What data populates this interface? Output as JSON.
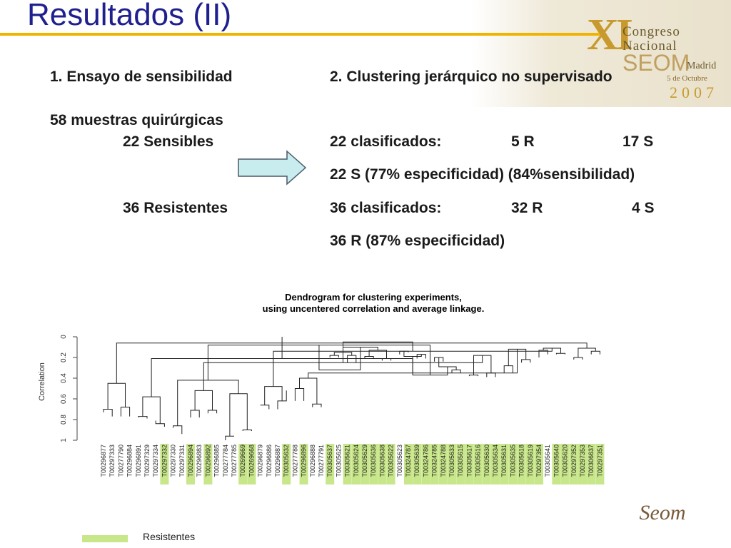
{
  "slide": {
    "title": "Resultados (II)"
  },
  "logo": {
    "xi": "XI",
    "line1": "Congreso",
    "line2": "Nacional",
    "seom": "SEOM",
    "city": "Madrid",
    "date": "5 de Octubre",
    "year": "2007",
    "bottom_logo": "Seom"
  },
  "section1": {
    "heading": "1. Ensayo de sensibilidad",
    "samples": "58 muestras quirúrgicas",
    "sensitive": "22 Sensibles",
    "resistant": "36 Resistentes"
  },
  "section2": {
    "heading": "2. Clustering jerárquico no supervisado",
    "row1": {
      "label": "22 clasificados:",
      "r": "5 R",
      "s": "17 S"
    },
    "row2": "22 S (77% especificidad) (84%sensibilidad)",
    "row3": {
      "label": "36 clasificados:",
      "r": "32 R",
      "s": "4 S"
    },
    "row4": "36 R (87% especificidad)"
  },
  "chart_data": {
    "type": "dendrogram",
    "title_line1": "Dendrogram for clustering experiments,",
    "title_line2": "using uncentered correlation and average linkage.",
    "ylabel": "Correlation",
    "yticks": [
      "0",
      "0.2",
      "0.4",
      "0.6",
      "0.8",
      "1"
    ],
    "ylim": [
      0,
      1
    ],
    "highlight_color": "#c8e68a",
    "leaves": [
      {
        "label": "T00296877",
        "resistant": false,
        "height": 0.73
      },
      {
        "label": "T00297333",
        "resistant": false,
        "height": 0.77
      },
      {
        "label": "T00277790",
        "resistant": false,
        "height": 0.77
      },
      {
        "label": "T00296884",
        "resistant": false,
        "height": 0.77
      },
      {
        "label": "T00296891",
        "resistant": false,
        "height": 0.78
      },
      {
        "label": "T00297329",
        "resistant": false,
        "height": 0.79
      },
      {
        "label": "T00297334",
        "resistant": false,
        "height": 0.81
      },
      {
        "label": "T00297332",
        "resistant": true,
        "height": 0.87
      },
      {
        "label": "T00297330",
        "resistant": false,
        "height": 0.88
      },
      {
        "label": "T00297331",
        "resistant": false,
        "height": 0.94
      },
      {
        "label": "T00296894",
        "resistant": true,
        "height": 0.78
      },
      {
        "label": "T00296883",
        "resistant": false,
        "height": 0.78
      },
      {
        "label": "T00296892",
        "resistant": true,
        "height": 0.74
      },
      {
        "label": "T00296885",
        "resistant": false,
        "height": 0.74
      },
      {
        "label": "T00277784",
        "resistant": false,
        "height": 1.0
      },
      {
        "label": "T00277785",
        "resistant": false,
        "height": 0.96
      },
      {
        "label": "T00269669",
        "resistant": true,
        "height": 0.91
      },
      {
        "label": "T00269668",
        "resistant": true,
        "height": 0.91
      },
      {
        "label": "T00296879",
        "resistant": false,
        "height": 0.66
      },
      {
        "label": "T00296886",
        "resistant": false,
        "height": 0.7
      },
      {
        "label": "T00296887",
        "resistant": false,
        "height": 0.7
      },
      {
        "label": "T00305632",
        "resistant": true,
        "height": 0.52
      },
      {
        "label": "T00277788",
        "resistant": false,
        "height": 0.62
      },
      {
        "label": "T00296896",
        "resistant": true,
        "height": 0.62
      },
      {
        "label": "T00296888",
        "resistant": false,
        "height": 0.68
      },
      {
        "label": "T00277791",
        "resistant": false,
        "height": 0.68
      },
      {
        "label": "T00305637",
        "resistant": true,
        "height": 0.2
      },
      {
        "label": "T00305625",
        "resistant": false,
        "height": 0.2
      },
      {
        "label": "T00305621",
        "resistant": true,
        "height": 0.25
      },
      {
        "label": "T00305624",
        "resistant": true,
        "height": 0.25
      },
      {
        "label": "T00305629",
        "resistant": true,
        "height": 0.21
      },
      {
        "label": "T00305636",
        "resistant": true,
        "height": 0.21
      },
      {
        "label": "T00305638",
        "resistant": true,
        "height": 0.23
      },
      {
        "label": "T00305622",
        "resistant": true,
        "height": 0.23
      },
      {
        "label": "T00305623",
        "resistant": false,
        "height": 0.17
      },
      {
        "label": "T00324787",
        "resistant": true,
        "height": 0.15
      },
      {
        "label": "T00305639",
        "resistant": true,
        "height": 0.21
      },
      {
        "label": "T00324786",
        "resistant": true,
        "height": 0.21
      },
      {
        "label": "T00324785",
        "resistant": true,
        "height": 0.24
      },
      {
        "label": "T00324788",
        "resistant": true,
        "height": 0.24
      },
      {
        "label": "T00305633",
        "resistant": true,
        "height": 0.35
      },
      {
        "label": "T00305615",
        "resistant": true,
        "height": 0.35
      },
      {
        "label": "T00305617",
        "resistant": true,
        "height": 0.38
      },
      {
        "label": "T00305616",
        "resistant": true,
        "height": 0.38
      },
      {
        "label": "T00305630",
        "resistant": true,
        "height": 0.39
      },
      {
        "label": "T00305634",
        "resistant": true,
        "height": 0.39
      },
      {
        "label": "T00305631",
        "resistant": true,
        "height": 0.35
      },
      {
        "label": "T00305635",
        "resistant": true,
        "height": 0.35
      },
      {
        "label": "T00305618",
        "resistant": true,
        "height": 0.25
      },
      {
        "label": "T00305619",
        "resistant": true,
        "height": 0.25
      },
      {
        "label": "T00297354",
        "resistant": true,
        "height": 0.2
      },
      {
        "label": "T00305641",
        "resistant": false,
        "height": 0.17
      },
      {
        "label": "T00305640",
        "resistant": true,
        "height": 0.17
      },
      {
        "label": "T00305620",
        "resistant": true,
        "height": 0.17
      },
      {
        "label": "T00297352",
        "resistant": true,
        "height": 0.22
      },
      {
        "label": "T00297353",
        "resistant": true,
        "height": 0.22
      },
      {
        "label": "T00306637",
        "resistant": true,
        "height": 0.17
      },
      {
        "label": "T00297351",
        "resistant": true,
        "height": 0.17
      }
    ],
    "legend": [
      {
        "label": "Resistentes",
        "color": "#c8e68a"
      }
    ]
  }
}
